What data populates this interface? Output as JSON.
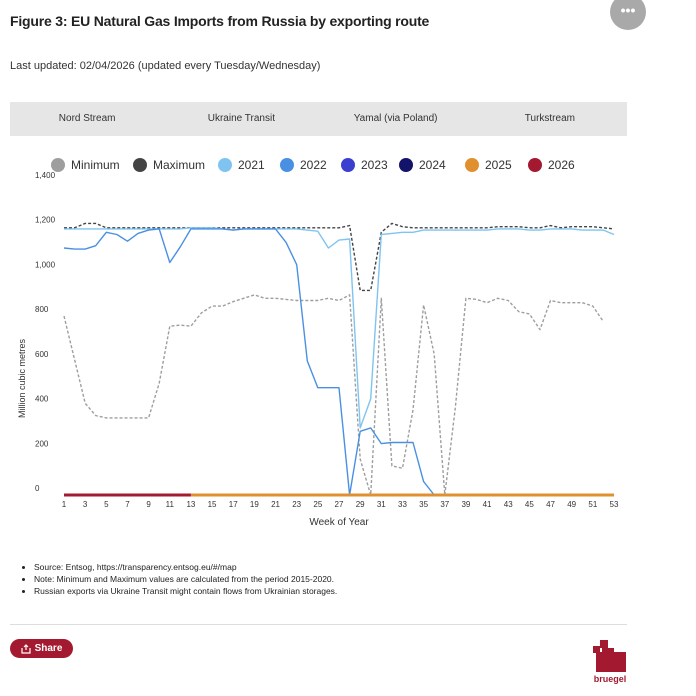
{
  "title": "Figure 3: EU Natural Gas Imports from Russia by exporting route",
  "last_updated": "Last updated: 02/04/2026 (updated every Tuesday/Wednesday)",
  "more_label": "•••",
  "tabs": [
    {
      "label": "Nord Stream",
      "active": true
    },
    {
      "label": "Ukraine Transit",
      "active": false
    },
    {
      "label": "Yamal (via Poland)",
      "active": false
    },
    {
      "label": "Turkstream",
      "active": false
    }
  ],
  "chart_data": {
    "type": "line",
    "ylabel": "Million cubic metres",
    "xlabel": "Week of Year",
    "ylim": [
      0,
      1400
    ],
    "xlim": [
      1,
      53
    ],
    "yticks": [
      "0",
      "200",
      "400",
      "600",
      "800",
      "1,000",
      "1,200",
      "1,400"
    ],
    "xticks": [
      "1",
      "3",
      "5",
      "7",
      "9",
      "11",
      "13",
      "15",
      "17",
      "19",
      "21",
      "23",
      "25",
      "27",
      "29",
      "31",
      "33",
      "35",
      "37",
      "39",
      "41",
      "43",
      "45",
      "47",
      "49",
      "51",
      "53"
    ],
    "legend_position": "top",
    "legend": [
      {
        "name": "Minimum",
        "color": "#9e9e9e"
      },
      {
        "name": "Maximum",
        "color": "#444444"
      },
      {
        "name": "2021",
        "color": "#7fc4f0"
      },
      {
        "name": "2022",
        "color": "#4a90e2"
      },
      {
        "name": "2023",
        "color": "#3a3fd0"
      },
      {
        "name": "2024",
        "color": "#13136a"
      },
      {
        "name": "2025",
        "color": "#e0902f"
      },
      {
        "name": "2026",
        "color": "#a3192f"
      }
    ],
    "series": [
      {
        "name": "Minimum",
        "color": "#9e9e9e",
        "dash": true,
        "x": [
          1,
          3,
          4,
          5,
          6,
          7,
          8,
          9,
          10,
          11,
          12,
          13,
          14,
          15,
          16,
          17,
          18,
          19,
          20,
          21,
          22,
          23,
          24,
          25,
          26,
          27,
          28,
          29,
          30,
          31,
          32,
          33,
          34,
          35,
          36,
          37,
          38,
          39,
          40,
          41,
          42,
          43,
          44,
          45,
          46,
          47,
          48,
          49,
          50,
          51,
          52
        ],
        "y": [
          800,
          410,
          355,
          345,
          345,
          345,
          345,
          345,
          500,
          755,
          760,
          755,
          815,
          845,
          845,
          865,
          880,
          895,
          880,
          880,
          875,
          870,
          870,
          870,
          880,
          870,
          895,
          160,
          0,
          880,
          130,
          120,
          380,
          850,
          630,
          0,
          390,
          880,
          875,
          860,
          880,
          870,
          820,
          810,
          740,
          870,
          860,
          860,
          860,
          845,
          775
        ]
      },
      {
        "name": "Maximum",
        "color": "#444444",
        "dash": true,
        "x": [
          1,
          2,
          3,
          4,
          5,
          6,
          7,
          8,
          9,
          10,
          11,
          12,
          13,
          14,
          15,
          16,
          17,
          18,
          19,
          20,
          21,
          22,
          23,
          24,
          25,
          26,
          27,
          28,
          29,
          30,
          31,
          32,
          33,
          34,
          35,
          36,
          37,
          38,
          39,
          40,
          41,
          42,
          43,
          44,
          45,
          46,
          47,
          48,
          49,
          50,
          51,
          52,
          53
        ],
        "y": [
          1195,
          1195,
          1215,
          1215,
          1195,
          1195,
          1195,
          1195,
          1195,
          1195,
          1195,
          1195,
          1195,
          1195,
          1195,
          1195,
          1195,
          1195,
          1195,
          1195,
          1195,
          1195,
          1195,
          1195,
          1195,
          1195,
          1195,
          1205,
          915,
          915,
          1175,
          1215,
          1200,
          1195,
          1195,
          1195,
          1195,
          1195,
          1195,
          1195,
          1195,
          1200,
          1200,
          1200,
          1195,
          1195,
          1205,
          1195,
          1200,
          1200,
          1200,
          1195,
          1190
        ]
      },
      {
        "name": "2021",
        "color": "#7fc4f0",
        "dash": false,
        "x": [
          1,
          2,
          3,
          4,
          5,
          6,
          7,
          8,
          9,
          10,
          11,
          12,
          13,
          14,
          15,
          16,
          17,
          18,
          19,
          20,
          21,
          22,
          23,
          24,
          25,
          26,
          27,
          28,
          29,
          30,
          31,
          32,
          33,
          34,
          35,
          36,
          37,
          38,
          39,
          40,
          41,
          42,
          43,
          44,
          45,
          46,
          47,
          48,
          49,
          50,
          51,
          52,
          53
        ],
        "y": [
          1190,
          1190,
          1190,
          1190,
          1190,
          1190,
          1190,
          1190,
          1190,
          1190,
          1190,
          1190,
          1195,
          1195,
          1195,
          1190,
          1185,
          1190,
          1190,
          1190,
          1190,
          1190,
          1190,
          1185,
          1180,
          1105,
          1140,
          1145,
          300,
          430,
          1165,
          1170,
          1175,
          1175,
          1185,
          1185,
          1185,
          1185,
          1185,
          1185,
          1185,
          1190,
          1190,
          1190,
          1185,
          1185,
          1190,
          1190,
          1190,
          1185,
          1185,
          1185,
          1165
        ]
      },
      {
        "name": "2022",
        "color": "#4a90e2",
        "dash": false,
        "x": [
          1,
          2,
          3,
          4,
          5,
          6,
          7,
          8,
          9,
          10,
          11,
          12,
          13,
          14,
          15,
          16,
          17,
          18,
          19,
          20,
          21,
          22,
          23,
          24,
          25,
          26,
          27,
          28,
          29,
          30,
          31,
          32,
          33,
          34,
          35,
          36,
          37
        ],
        "y": [
          1105,
          1100,
          1100,
          1115,
          1175,
          1165,
          1135,
          1170,
          1185,
          1190,
          1040,
          1110,
          1190,
          1190,
          1190,
          1190,
          1185,
          1190,
          1190,
          1190,
          1190,
          1130,
          1030,
          600,
          480,
          480,
          480,
          0,
          285,
          300,
          230,
          235,
          235,
          235,
          60,
          0,
          0
        ]
      },
      {
        "name": "2025",
        "color": "#e0902f",
        "dash": false,
        "x": [
          13,
          53
        ],
        "y": [
          0,
          0
        ]
      },
      {
        "name": "2026",
        "color": "#a3192f",
        "dash": false,
        "x": [
          1,
          13
        ],
        "y": [
          0,
          0
        ]
      }
    ]
  },
  "notes": [
    "Source: Entsog,   https://transparency.entsog.eu/#/map",
    "Note: Minimum and Maximum values are calculated from the period 2015-2020.",
    "Russian exports via Ukraine Transit might contain flows from Ukrainian storages."
  ],
  "share_label": "Share",
  "brand": "bruegel",
  "brand_color": "#a3192f"
}
